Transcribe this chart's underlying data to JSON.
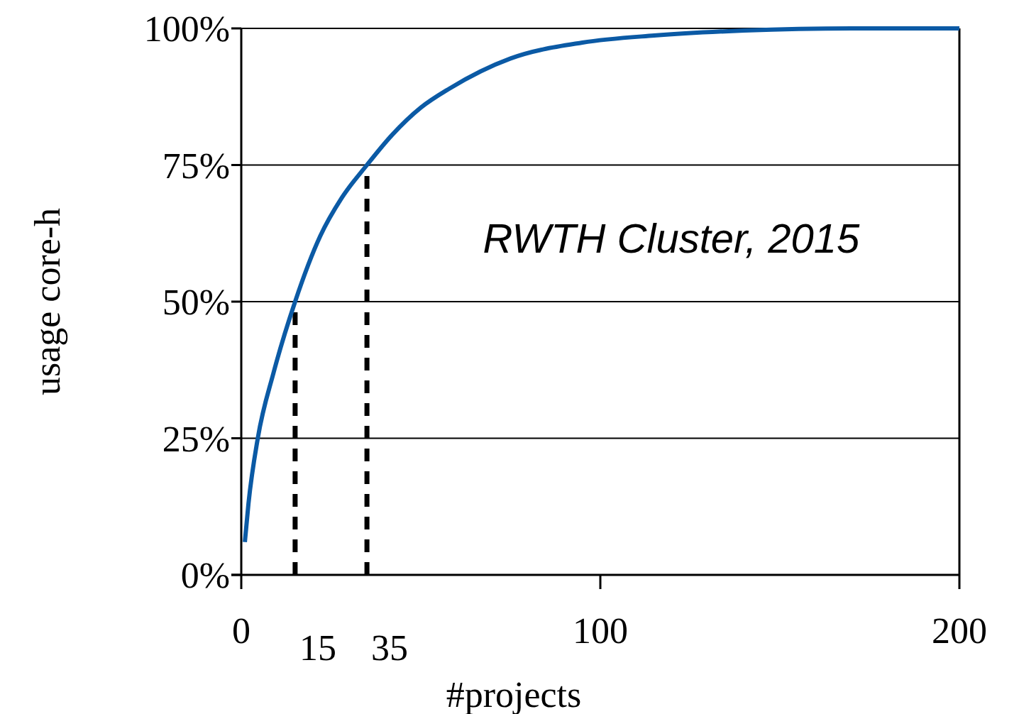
{
  "chart_data": {
    "type": "line",
    "xlabel": "#projects",
    "ylabel": "usage core-h",
    "x": [
      1,
      2,
      4.6,
      9,
      15,
      22,
      28,
      35,
      42,
      50,
      58,
      75,
      95,
      115,
      140,
      170,
      200
    ],
    "series": [
      {
        "color": "#0b5aa5",
        "values": [
          6,
          13,
          25,
          37,
          50,
          62,
          69,
          75,
          80.5,
          85.5,
          89,
          94.5,
          97.4,
          98.7,
          99.6,
          100,
          100
        ]
      }
    ],
    "xlim": [
      0,
      200
    ],
    "xticks": [
      0,
      100,
      200
    ],
    "ylim": [
      0,
      100
    ],
    "yticks": [
      {
        "value": 0,
        "label": "0%"
      },
      {
        "value": 25,
        "label": "25%"
      },
      {
        "value": 50,
        "label": "50%"
      },
      {
        "value": 75,
        "label": "75%"
      },
      {
        "value": 100,
        "label": "100%"
      }
    ],
    "grid": "y",
    "marker": "none",
    "line_style": "solid",
    "ref_lines": [
      {
        "axis": "x",
        "value": 15,
        "label": "15",
        "line_style": "dashed",
        "color": "#000000"
      },
      {
        "axis": "x",
        "value": 35,
        "label": "35",
        "line_style": "dashed",
        "color": "#000000"
      }
    ],
    "annotations": [
      "RWTH Cluster, 2015"
    ]
  }
}
